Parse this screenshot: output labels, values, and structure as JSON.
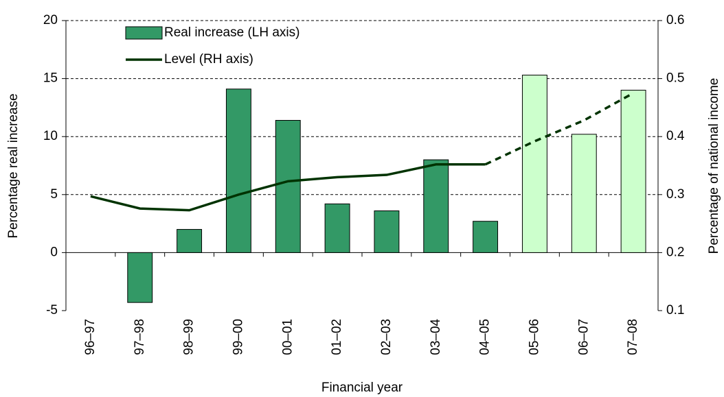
{
  "chart_data": {
    "type": "bar_line",
    "categories": [
      "96–97",
      "97–98",
      "98–99",
      "99–00",
      "00–01",
      "01–02",
      "02–03",
      "03–04",
      "04–05",
      "05–06",
      "06–07",
      "07–08"
    ],
    "series": [
      {
        "name": "Real increase (LH axis)",
        "type": "bar",
        "color": "#339966",
        "colors": [
          "#339966",
          "#339966",
          "#339966",
          "#339966",
          "#339966",
          "#339966",
          "#339966",
          "#339966",
          "#339966",
          "#ccffcc",
          "#ccffcc",
          "#ccffcc"
        ],
        "values": [
          null,
          -4.3,
          2.0,
          14.1,
          11.4,
          4.2,
          3.6,
          8.0,
          2.7,
          15.3,
          10.2,
          14.0
        ]
      },
      {
        "name": "Level (RH axis)",
        "type": "line",
        "axis": "y2",
        "color": "#003300",
        "projected_from_index": 8,
        "values": [
          0.297,
          0.276,
          0.273,
          0.3,
          0.323,
          0.33,
          0.334,
          0.352,
          0.352,
          0.392,
          0.428,
          0.475
        ]
      }
    ],
    "xlabel": "Financial year",
    "ylabel": "Percentage real increase",
    "y2label": "Percentage of national income",
    "ylim": [
      -5,
      20
    ],
    "yticks": [
      {
        "value": -5,
        "label": "-5"
      },
      0,
      5,
      10,
      15,
      20
    ],
    "y2lim": [
      0.1,
      0.6
    ],
    "y2ticks": [
      0.1,
      0.2,
      0.3,
      0.4,
      0.5,
      0.6
    ],
    "grid": true,
    "legend": "top-left"
  }
}
